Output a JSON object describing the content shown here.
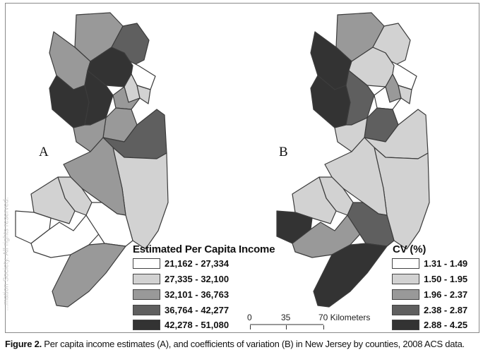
{
  "panels": [
    {
      "label": "A",
      "legend": {
        "title": "Estimated Per Capita Income",
        "classes": [
          {
            "range": "21,162 - 27,334",
            "color": "#ffffff"
          },
          {
            "range": "27,335 - 32,100",
            "color": "#d2d2d2"
          },
          {
            "range": "32,101 - 36,763",
            "color": "#999999"
          },
          {
            "range": "36,764 - 42,277",
            "color": "#5f5f5f"
          },
          {
            "range": "42,278 - 51,080",
            "color": "#333333"
          }
        ]
      }
    },
    {
      "label": "B",
      "legend": {
        "title": "CV (%)",
        "classes": [
          {
            "range": "1.31 - 1.49",
            "color": "#ffffff"
          },
          {
            "range": "1.50 - 1.95",
            "color": "#d2d2d2"
          },
          {
            "range": "1.96 - 2.37",
            "color": "#999999"
          },
          {
            "range": "2.38 - 2.87",
            "color": "#5f5f5f"
          },
          {
            "range": "2.88 - 4.25",
            "color": "#333333"
          }
        ]
      }
    }
  ],
  "scale_bar": {
    "ticks": [
      "0",
      "35",
      "70 Kilometers"
    ]
  },
  "caption": {
    "prefix": "Figure 2.",
    "text": " Per capita income estimates (A), and coefficients of variation (B) in New Jersey by counties, 2008 ACS data."
  },
  "side_watermark": "...mation Society. All rights reserved.",
  "county_classes": {
    "A": {
      "sussex": 2,
      "passaic": 3,
      "bergen": 0,
      "warren": 2,
      "morris": 4,
      "essex": 1,
      "hudson": 1,
      "hunterdon": 4,
      "somerset": 4,
      "union": 2,
      "middlesex": 2,
      "monmouth": 3,
      "mercer": 2,
      "ocean": 1,
      "burlington": 2,
      "camden": 1,
      "gloucester": 1,
      "salem": 0,
      "cumberland": 0,
      "atlantic": 0,
      "capemay": 2
    },
    "B": {
      "sussex": 2,
      "passaic": 1,
      "bergen": 0,
      "warren": 4,
      "morris": 1,
      "essex": 2,
      "hudson": 1,
      "hunterdon": 4,
      "somerset": 3,
      "union": 0,
      "middlesex": 3,
      "monmouth": 1,
      "mercer": 1,
      "ocean": 1,
      "burlington": 1,
      "camden": 1,
      "gloucester": 1,
      "salem": 4,
      "cumberland": 2,
      "atlantic": 3,
      "capemay": 4
    }
  }
}
